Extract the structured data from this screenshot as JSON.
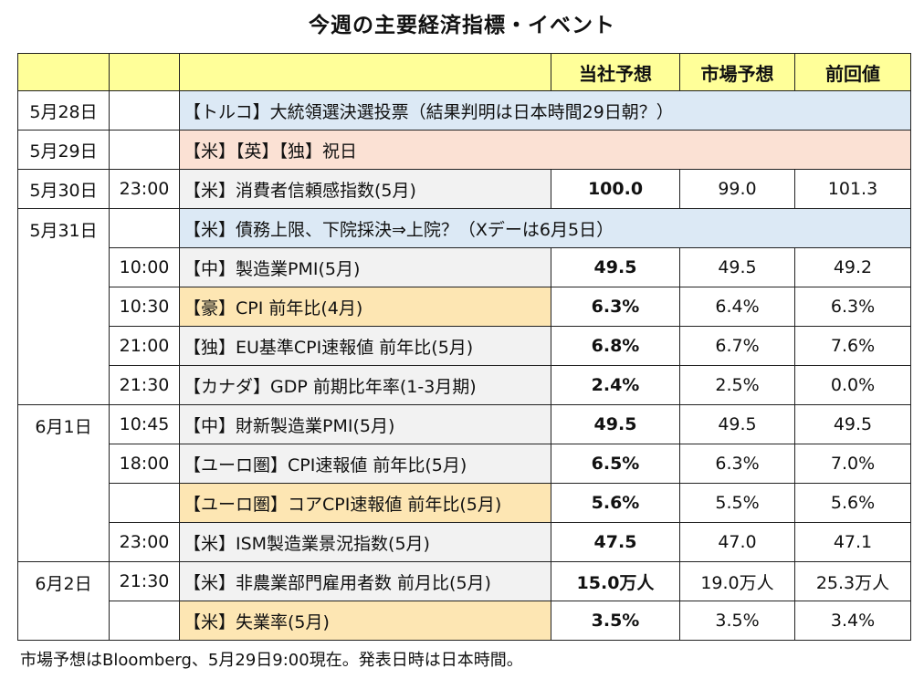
{
  "title": "今週の主要経済指標・イベント",
  "header": {
    "own": "当社予想",
    "market": "市場予想",
    "prev": "前回値"
  },
  "rows": [
    {
      "date": "5月28日",
      "time": "",
      "event": "【トルコ】大統領選決選投票（結果判明は日本時間29日朝？）",
      "own": "",
      "market": "",
      "prev": ""
    },
    {
      "date": "5月29日",
      "time": "",
      "event": "【米】【英】【独】祝日",
      "own": "",
      "market": "",
      "prev": ""
    },
    {
      "date": "5月30日",
      "time": "23:00",
      "event": "【米】消費者信頼感指数(5月)",
      "own": "100.0",
      "market": "99.0",
      "prev": "101.3"
    },
    {
      "date": "5月31日",
      "time": "",
      "event": "【米】債務上限、下院採決⇒上院？（Xデーは6月5日）",
      "own": "",
      "market": "",
      "prev": ""
    },
    {
      "date": "",
      "time": "10:00",
      "event": "【中】製造業PMI(5月)",
      "own": "49.5",
      "market": "49.5",
      "prev": "49.2"
    },
    {
      "date": "",
      "time": "10:30",
      "event": "【豪】CPI 前年比(4月)",
      "own": "6.3%",
      "market": "6.4%",
      "prev": "6.3%"
    },
    {
      "date": "",
      "time": "21:00",
      "event": "【独】EU基準CPI速報値 前年比(5月)",
      "own": "6.8%",
      "market": "6.7%",
      "prev": "7.6%"
    },
    {
      "date": "",
      "time": "21:30",
      "event": "【カナダ】GDP 前期比年率(1-3月期)",
      "own": "2.4%",
      "market": "2.5%",
      "prev": "0.0%"
    },
    {
      "date": "6月1日",
      "time": "10:45",
      "event": "【中】財新製造業PMI(5月)",
      "own": "49.5",
      "market": "49.5",
      "prev": "49.5"
    },
    {
      "date": "",
      "time": "18:00",
      "event": "【ユーロ圏】CPI速報値 前年比(5月)",
      "own": "6.5%",
      "market": "6.3%",
      "prev": "7.0%"
    },
    {
      "date": "",
      "time": "",
      "event": "【ユーロ圏】コアCPI速報値 前年比(5月)",
      "own": "5.6%",
      "market": "5.5%",
      "prev": "5.6%"
    },
    {
      "date": "",
      "time": "23:00",
      "event": "【米】ISM製造業景況指数(5月)",
      "own": "47.5",
      "market": "47.0",
      "prev": "47.1"
    },
    {
      "date": "6月2日",
      "time": "21:30",
      "event": "【米】非農業部門雇用者数 前月比(5月)",
      "own": "15.0万人",
      "market": "19.0万人",
      "prev": "25.3万人"
    },
    {
      "date": "",
      "time": "",
      "event": "【米】失業率(5月)",
      "own": "3.5%",
      "market": "3.5%",
      "prev": "3.4%"
    }
  ],
  "colors": {
    "header_bg": "#ffff99",
    "gray": "#f2f2f2",
    "blue": "#dce9f5",
    "peach": "#fbe1d4",
    "orange": "#fde6b3"
  },
  "footnote": "市場予想はBloomberg、5月29日9:00現在。発表日時は日本時間。"
}
